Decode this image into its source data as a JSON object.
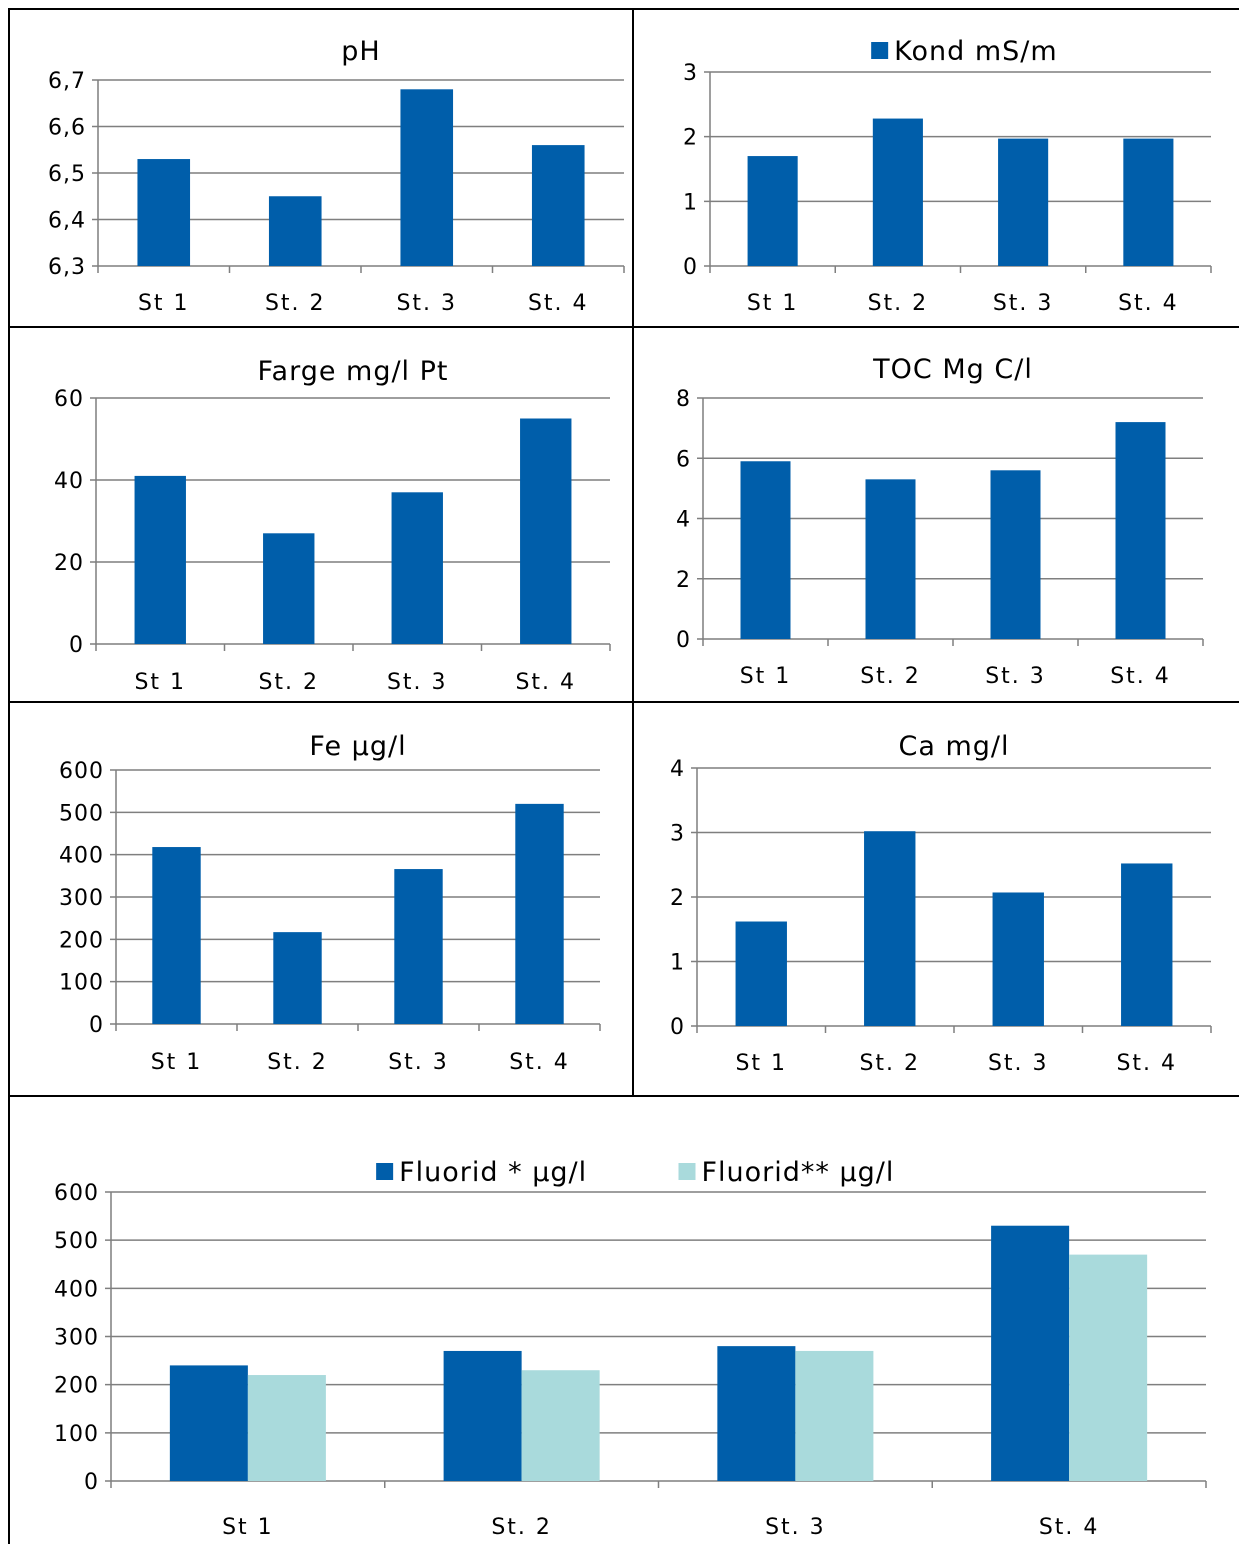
{
  "colors": {
    "primary": "#005EAA",
    "secondary": "#A9DADC",
    "gridline": "#7f7f7f"
  },
  "chart_data": [
    {
      "type": "bar",
      "title": "pH",
      "categories": [
        "St 1",
        "St. 2",
        "St. 3",
        "St. 4"
      ],
      "series": [
        {
          "values": [
            6.53,
            6.45,
            6.68,
            6.56
          ]
        }
      ],
      "ylim": [
        6.3,
        6.7
      ],
      "ytick_labels": [
        "6,3",
        "6,4",
        "6,5",
        "6,6",
        "6,7"
      ],
      "grid": true
    },
    {
      "type": "bar",
      "title": "",
      "categories": [
        "St 1",
        "St. 2",
        "St. 3",
        "St. 4"
      ],
      "series": [
        {
          "name": "Kond mS/m",
          "values": [
            1.7,
            2.28,
            1.97,
            1.97
          ]
        }
      ],
      "ylim": [
        0,
        3
      ],
      "ytick_labels": [
        "0",
        "1",
        "2",
        "3"
      ],
      "legend": "top",
      "grid": true
    },
    {
      "type": "bar",
      "title": "Farge mg/l Pt",
      "categories": [
        "St 1",
        "St. 2",
        "St. 3",
        "St. 4"
      ],
      "series": [
        {
          "values": [
            41,
            27,
            37,
            55
          ]
        }
      ],
      "ylim": [
        0,
        60
      ],
      "ytick_labels": [
        "0",
        "20",
        "40",
        "60"
      ],
      "grid": true
    },
    {
      "type": "bar",
      "title": "TOC Mg C/l",
      "categories": [
        "St 1",
        "St. 2",
        "St. 3",
        "St. 4"
      ],
      "series": [
        {
          "values": [
            5.9,
            5.3,
            5.6,
            7.2
          ]
        }
      ],
      "ylim": [
        0,
        8
      ],
      "ytick_labels": [
        "0",
        "2",
        "4",
        "6",
        "8"
      ],
      "grid": true
    },
    {
      "type": "bar",
      "title": "Fe µg/l",
      "categories": [
        "St 1",
        "St. 2",
        "St. 3",
        "St. 4"
      ],
      "series": [
        {
          "values": [
            418,
            217,
            366,
            520
          ]
        }
      ],
      "ylim": [
        0,
        600
      ],
      "ytick_labels": [
        "0",
        "100",
        "200",
        "300",
        "400",
        "500",
        "600"
      ],
      "grid": true
    },
    {
      "type": "bar",
      "title": "Ca mg/l",
      "categories": [
        "St 1",
        "St. 2",
        "St. 3",
        "St. 4"
      ],
      "series": [
        {
          "values": [
            1.62,
            3.02,
            2.07,
            2.52
          ]
        }
      ],
      "ylim": [
        0,
        4
      ],
      "ytick_labels": [
        "0",
        "1",
        "2",
        "3",
        "4"
      ],
      "grid": true
    },
    {
      "type": "bar",
      "title": "",
      "categories": [
        "St 1",
        "St. 2",
        "St. 3",
        "St. 4"
      ],
      "series": [
        {
          "name": "Fluorid * µg/l",
          "values": [
            240,
            270,
            280,
            530
          ]
        },
        {
          "name": "Fluorid** µg/l",
          "values": [
            220,
            230,
            270,
            470
          ]
        }
      ],
      "ylim": [
        0,
        600
      ],
      "ytick_labels": [
        "0",
        "100",
        "200",
        "300",
        "400",
        "500",
        "600"
      ],
      "legend": "top",
      "grid": true
    }
  ]
}
